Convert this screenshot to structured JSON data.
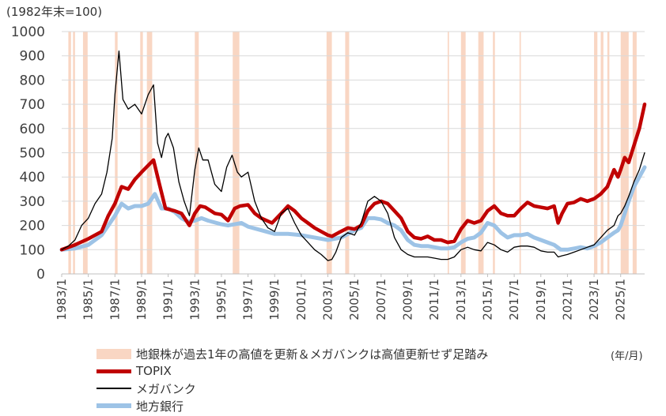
{
  "chart_data": {
    "type": "line",
    "ylabel": "(1982年末=100)",
    "xunit": "(年/月)",
    "ylim": [
      0,
      1000
    ],
    "yticks": [
      0,
      100,
      200,
      300,
      400,
      500,
      600,
      700,
      800,
      900,
      1000
    ],
    "xlim": [
      1983.0,
      2026.8
    ],
    "xticks": [
      "1983/1",
      "1985/1",
      "1987/1",
      "1989/1",
      "1991/1",
      "1993/1",
      "1995/1",
      "1997/1",
      "1999/1",
      "2001/1",
      "2003/1",
      "2005/1",
      "2007/1",
      "2009/1",
      "2011/1",
      "2013/1",
      "2015/1",
      "2017/1",
      "2019/1",
      "2021/1",
      "2023/1",
      "2025/1"
    ],
    "grid": "horizontal",
    "legend_position": "bottom",
    "shaded_label": "地銀株が過去1年の高値を更新＆メガバンクは高値更新せず足踏み",
    "shaded_periods": [
      [
        1983.5,
        1983.7
      ],
      [
        1983.85,
        1984.0
      ],
      [
        1984.6,
        1984.95
      ],
      [
        1987.0,
        1987.2
      ],
      [
        1988.9,
        1989.1
      ],
      [
        1989.4,
        1989.8
      ],
      [
        1993.0,
        1993.3
      ],
      [
        1995.85,
        1996.35
      ],
      [
        2002.9,
        2003.3
      ],
      [
        2004.3,
        2004.6
      ],
      [
        2012.0,
        2012.1
      ],
      [
        2013.0,
        2013.35
      ],
      [
        2014.3,
        2014.7
      ],
      [
        2015.4,
        2015.55
      ],
      [
        2017.4,
        2017.5
      ],
      [
        2023.0,
        2023.25
      ],
      [
        2023.5,
        2023.7
      ],
      [
        2024.0,
        2024.15
      ],
      [
        2025.0,
        2025.6
      ],
      [
        2025.9,
        2026.2
      ]
    ],
    "series": [
      {
        "name": "TOPIX",
        "color": "#C00000",
        "x": [
          1983.0,
          1984.0,
          1985.0,
          1986.0,
          1986.5,
          1987.0,
          1987.5,
          1988.0,
          1988.5,
          1989.0,
          1989.9,
          1990.3,
          1990.8,
          1991.5,
          1992.0,
          1992.6,
          1993.0,
          1993.4,
          1993.8,
          1994.5,
          1995.0,
          1995.5,
          1996.0,
          1996.4,
          1997.0,
          1997.5,
          1998.0,
          1998.8,
          1999.5,
          2000.0,
          2000.5,
          2001.0,
          2001.5,
          2002.0,
          2002.5,
          2003.0,
          2003.3,
          2003.8,
          2004.5,
          2005.0,
          2005.5,
          2006.0,
          2006.5,
          2007.0,
          2007.5,
          2008.0,
          2008.5,
          2009.0,
          2009.5,
          2010.0,
          2010.5,
          2011.0,
          2011.5,
          2012.0,
          2012.5,
          2013.0,
          2013.5,
          2014.0,
          2014.5,
          2015.0,
          2015.5,
          2016.0,
          2016.5,
          2017.0,
          2017.5,
          2018.0,
          2018.5,
          2019.0,
          2019.5,
          2020.0,
          2020.3,
          2020.6,
          2021.0,
          2021.5,
          2022.0,
          2022.5,
          2023.0,
          2023.5,
          2024.0,
          2024.5,
          2024.8,
          2025.0,
          2025.3,
          2025.6,
          2026.0,
          2026.4,
          2026.8
        ],
        "y": [
          100,
          120,
          145,
          175,
          240,
          290,
          360,
          350,
          390,
          420,
          470,
          380,
          270,
          260,
          250,
          200,
          250,
          280,
          275,
          250,
          245,
          220,
          270,
          280,
          285,
          250,
          230,
          210,
          250,
          280,
          260,
          230,
          210,
          190,
          175,
          160,
          155,
          170,
          190,
          185,
          200,
          260,
          290,
          300,
          290,
          260,
          230,
          175,
          150,
          145,
          155,
          140,
          140,
          130,
          135,
          185,
          220,
          210,
          220,
          260,
          280,
          250,
          240,
          240,
          270,
          295,
          280,
          275,
          270,
          280,
          210,
          250,
          290,
          295,
          310,
          300,
          310,
          330,
          360,
          430,
          400,
          430,
          480,
          460,
          530,
          600,
          700
        ]
      },
      {
        "name": "メガバンク",
        "color": "#000000",
        "x": [
          1983.0,
          1983.5,
          1984.0,
          1984.5,
          1985.0,
          1985.5,
          1986.0,
          1986.4,
          1986.8,
          1987.0,
          1987.3,
          1987.6,
          1988.0,
          1988.5,
          1989.0,
          1989.5,
          1989.9,
          1990.2,
          1990.5,
          1990.8,
          1991.0,
          1991.4,
          1991.8,
          1992.2,
          1992.6,
          1993.0,
          1993.3,
          1993.6,
          1994.0,
          1994.5,
          1995.0,
          1995.4,
          1995.8,
          1996.2,
          1996.5,
          1997.0,
          1997.5,
          1998.0,
          1998.5,
          1999.0,
          1999.5,
          2000.0,
          2000.5,
          2001.0,
          2001.5,
          2002.0,
          2002.5,
          2003.0,
          2003.3,
          2003.6,
          2004.0,
          2004.5,
          2005.0,
          2005.5,
          2006.0,
          2006.5,
          2007.0,
          2007.5,
          2008.0,
          2008.5,
          2009.0,
          2009.5,
          2010.0,
          2010.5,
          2011.0,
          2011.5,
          2012.0,
          2012.5,
          2013.0,
          2013.5,
          2014.0,
          2014.5,
          2015.0,
          2015.5,
          2016.0,
          2016.5,
          2017.0,
          2017.5,
          2018.0,
          2018.5,
          2019.0,
          2019.5,
          2020.0,
          2020.3,
          2020.6,
          2021.0,
          2021.5,
          2022.0,
          2022.5,
          2023.0,
          2023.5,
          2024.0,
          2024.5,
          2024.8,
          2025.0,
          2025.3,
          2025.6,
          2026.0,
          2026.4,
          2026.8
        ],
        "y": [
          100,
          115,
          140,
          200,
          230,
          290,
          330,
          420,
          560,
          740,
          920,
          720,
          680,
          700,
          660,
          740,
          780,
          540,
          480,
          560,
          580,
          520,
          380,
          300,
          240,
          430,
          520,
          470,
          470,
          370,
          340,
          440,
          490,
          420,
          400,
          420,
          300,
          230,
          190,
          175,
          250,
          270,
          210,
          160,
          130,
          100,
          80,
          55,
          60,
          90,
          150,
          170,
          160,
          210,
          300,
          320,
          300,
          250,
          150,
          100,
          80,
          70,
          70,
          70,
          65,
          60,
          60,
          70,
          100,
          110,
          100,
          95,
          130,
          120,
          100,
          90,
          110,
          115,
          115,
          110,
          95,
          90,
          90,
          70,
          75,
          80,
          90,
          100,
          110,
          120,
          150,
          180,
          200,
          240,
          250,
          280,
          320,
          380,
          430,
          500
        ]
      },
      {
        "name": "地方銀行",
        "color": "#9DC3E6",
        "x": [
          1983.0,
          1984.0,
          1985.0,
          1986.0,
          1986.5,
          1987.0,
          1987.5,
          1988.0,
          1988.5,
          1989.0,
          1989.5,
          1990.0,
          1990.5,
          1991.0,
          1991.5,
          1992.0,
          1992.5,
          1993.0,
          1993.5,
          1994.0,
          1995.0,
          1995.5,
          1996.0,
          1996.5,
          1997.0,
          1998.0,
          1999.0,
          2000.0,
          2001.0,
          2002.0,
          2003.0,
          2003.5,
          2004.0,
          2004.5,
          2005.0,
          2005.5,
          2006.0,
          2006.5,
          2007.0,
          2007.5,
          2008.0,
          2008.5,
          2009.0,
          2009.5,
          2010.0,
          2010.5,
          2011.0,
          2011.5,
          2012.0,
          2012.5,
          2013.0,
          2013.5,
          2014.0,
          2014.5,
          2015.0,
          2015.5,
          2016.0,
          2016.5,
          2017.0,
          2017.5,
          2018.0,
          2018.5,
          2019.0,
          2019.5,
          2020.0,
          2020.5,
          2021.0,
          2021.5,
          2022.0,
          2022.5,
          2023.0,
          2023.5,
          2024.0,
          2024.5,
          2024.8,
          2025.0,
          2025.3,
          2025.6,
          2026.0,
          2026.4,
          2026.8
        ],
        "y": [
          100,
          105,
          120,
          160,
          200,
          240,
          290,
          270,
          280,
          280,
          290,
          330,
          270,
          270,
          255,
          230,
          215,
          220,
          230,
          220,
          205,
          200,
          205,
          210,
          195,
          180,
          165,
          165,
          160,
          150,
          140,
          145,
          150,
          165,
          180,
          190,
          230,
          230,
          225,
          210,
          200,
          180,
          140,
          120,
          115,
          115,
          110,
          105,
          105,
          110,
          130,
          145,
          150,
          170,
          210,
          200,
          170,
          150,
          160,
          160,
          165,
          150,
          140,
          130,
          120,
          100,
          100,
          105,
          110,
          105,
          115,
          130,
          150,
          170,
          180,
          200,
          250,
          300,
          360,
          400,
          440
        ]
      }
    ]
  }
}
